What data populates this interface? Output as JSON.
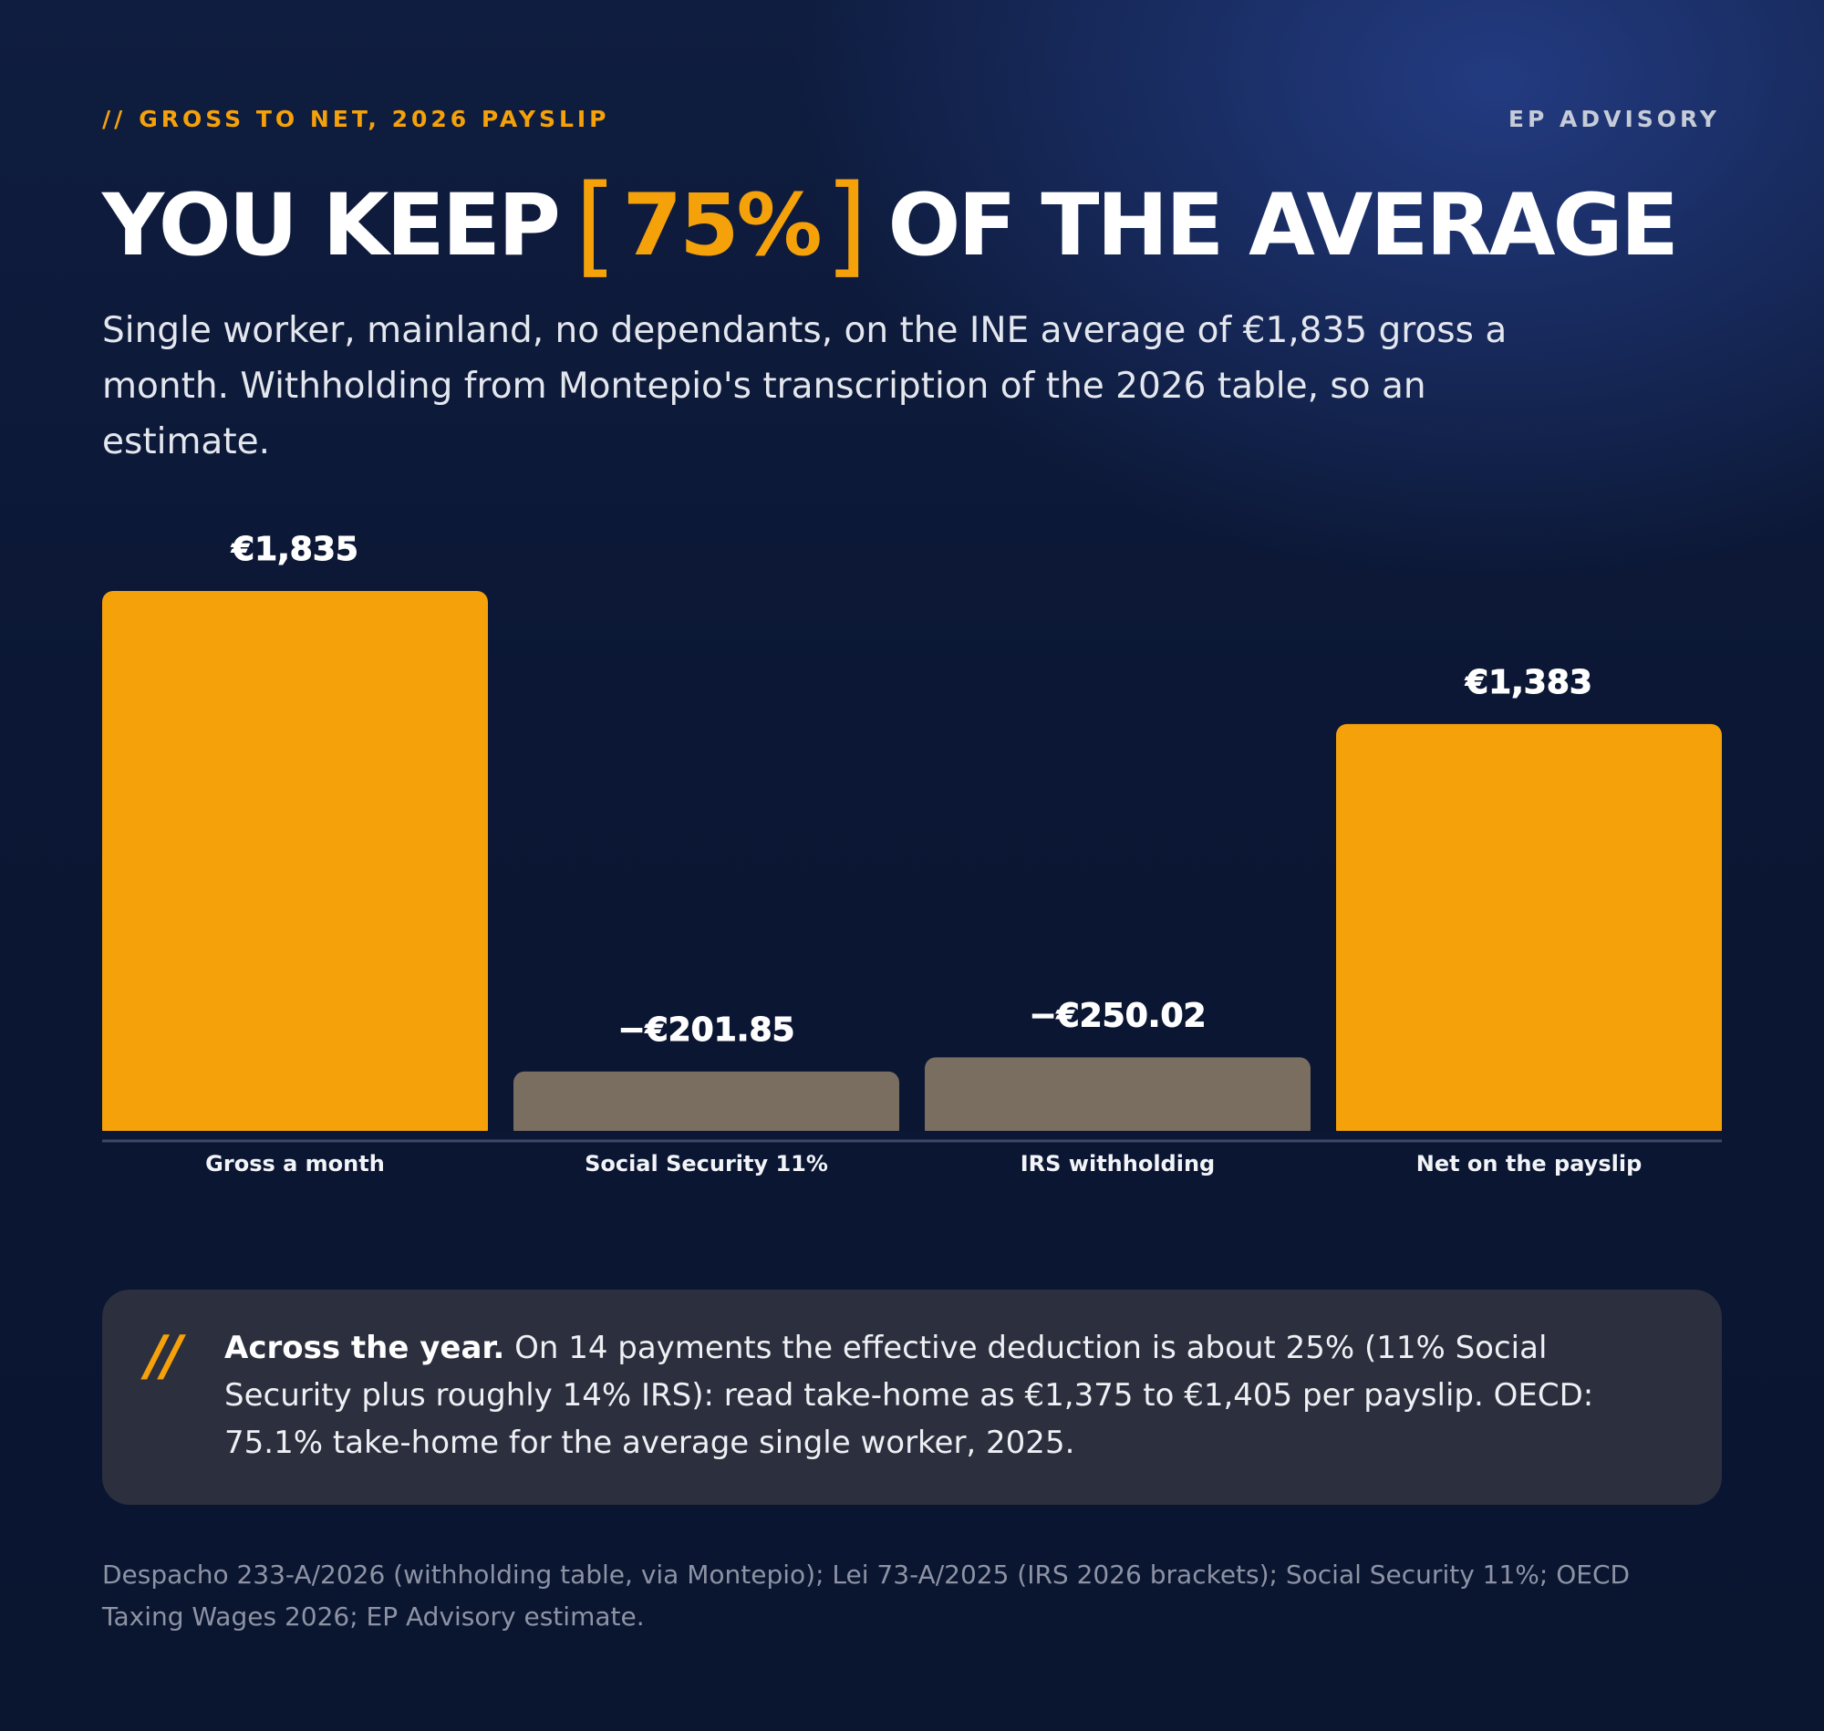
{
  "header": {
    "eyebrow_mark": "//",
    "eyebrow": "GROSS TO NET, 2026 PAYSLIP",
    "brand": "EP ADVISORY"
  },
  "headline": {
    "before": "YOU KEEP",
    "bracket_open": "[",
    "highlight": "75%",
    "bracket_close": "]",
    "after": "OF THE AVERAGE"
  },
  "subtitle": "Single worker, mainland, no dependants, on the INE average of €1,835 gross a month. Withholding from Montepio's transcription of the 2026 table, so an estimate.",
  "colors": {
    "accent": "#f5a10a",
    "deduction": "#7a6e60",
    "background": "#0b1631",
    "axis": "#3c4966",
    "label": "#ffffff"
  },
  "chart_data": {
    "type": "bar",
    "categories": [
      "Gross a month",
      "Social Security 11%",
      "IRS withholding",
      "Net on the payslip"
    ],
    "values": [
      1835,
      201.85,
      250.02,
      1383
    ],
    "data_labels": [
      "€1,835",
      "−€201.85",
      "−€250.02",
      "€1,383"
    ],
    "kind": [
      "total",
      "deduction",
      "deduction",
      "total"
    ],
    "ylim": [
      0,
      1835
    ],
    "grid": false,
    "legend": "none"
  },
  "note": {
    "mark": "//",
    "lead": "Across the year.",
    "body": "On 14 payments the effective deduction is about 25% (11% Social Security plus roughly 14% IRS): read take-home as €1,375 to €1,405 per payslip. OECD: 75.1% take-home for the average single worker, 2025."
  },
  "footer": "Despacho 233-A/2026 (withholding table, via Montepio); Lei 73-A/2025 (IRS 2026 brackets); Social Security 11%; OECD Taxing Wages 2026; EP Advisory estimate."
}
